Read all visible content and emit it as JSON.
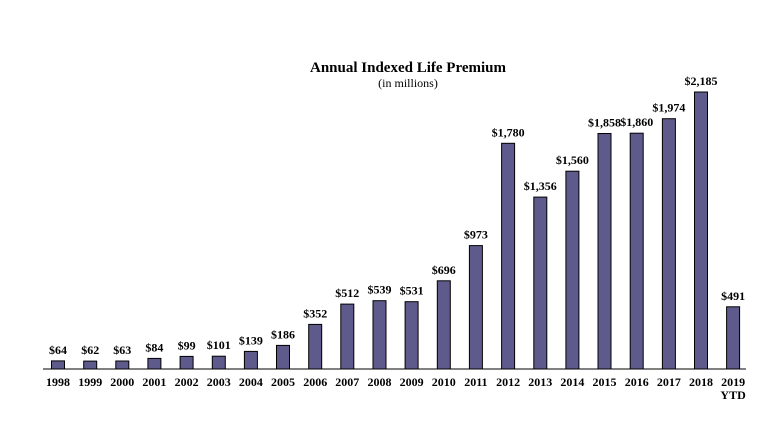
{
  "chart_data": {
    "type": "bar",
    "title": "Annual Indexed Life Premium",
    "subtitle": "(in millions)",
    "categories": [
      "1998",
      "1999",
      "2000",
      "2001",
      "2002",
      "2003",
      "2004",
      "2005",
      "2006",
      "2007",
      "2008",
      "2009",
      "2010",
      "2011",
      "2012",
      "2013",
      "2014",
      "2015",
      "2016",
      "2017",
      "2018",
      "2019 YTD"
    ],
    "values": [
      64,
      62,
      63,
      84,
      99,
      101,
      139,
      186,
      352,
      512,
      539,
      531,
      696,
      973,
      1780,
      1356,
      1560,
      1858,
      1860,
      1974,
      2185,
      491
    ],
    "value_labels": [
      "$64",
      "$62",
      "$63",
      "$84",
      "$99",
      "$101",
      "$139",
      "$186",
      "$352",
      "$512",
      "$539",
      "$531",
      "$696",
      "$973",
      "$1,780",
      "$1,356",
      "$1,560",
      "$1,858",
      "$1,860",
      "$1,974",
      "$2,185",
      "$491"
    ],
    "ylim": [
      0,
      2185
    ],
    "bar_color": "#5e5b8c",
    "grid": false,
    "legend": "none"
  }
}
